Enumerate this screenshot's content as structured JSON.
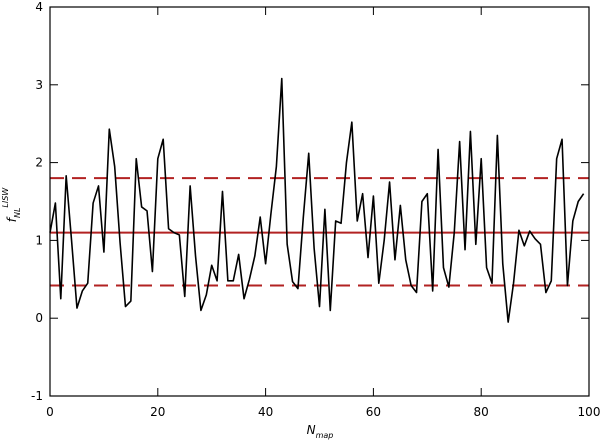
{
  "chart_data": {
    "type": "line",
    "xlabel": {
      "base": "N",
      "sub": "map"
    },
    "ylabel": {
      "base": "f",
      "sub": "NL",
      "sup": "LISW"
    },
    "x": [
      0,
      1,
      2,
      3,
      4,
      5,
      6,
      7,
      8,
      9,
      10,
      11,
      12,
      13,
      14,
      15,
      16,
      17,
      18,
      19,
      20,
      21,
      22,
      23,
      24,
      25,
      26,
      27,
      28,
      29,
      30,
      31,
      32,
      33,
      34,
      35,
      36,
      37,
      38,
      39,
      40,
      41,
      42,
      43,
      44,
      45,
      46,
      47,
      48,
      49,
      50,
      51,
      52,
      53,
      54,
      55,
      56,
      57,
      58,
      59,
      60,
      61,
      62,
      63,
      64,
      65,
      66,
      67,
      68,
      69,
      70,
      71,
      72,
      73,
      74,
      75,
      76,
      77,
      78,
      79,
      80,
      81,
      82,
      83,
      84,
      85,
      86,
      87,
      88,
      89,
      90,
      91,
      92,
      93,
      94,
      95,
      96,
      97,
      98,
      99
    ],
    "series": [
      {
        "color": "#000000",
        "values": [
          1.1,
          1.48,
          0.25,
          1.83,
          1.0,
          0.13,
          0.35,
          0.45,
          1.48,
          1.7,
          0.85,
          2.43,
          1.95,
          0.97,
          0.15,
          0.22,
          2.05,
          1.43,
          1.38,
          0.6,
          2.05,
          2.3,
          1.15,
          1.1,
          1.07,
          0.28,
          1.7,
          0.8,
          0.1,
          0.3,
          0.68,
          0.48,
          1.63,
          0.48,
          0.48,
          0.82,
          0.25,
          0.5,
          0.8,
          1.3,
          0.7,
          1.35,
          1.95,
          3.08,
          0.95,
          0.47,
          0.38,
          1.3,
          2.12,
          0.9,
          0.15,
          1.4,
          0.1,
          1.25,
          1.22,
          2.0,
          2.52,
          1.25,
          1.6,
          0.78,
          1.57,
          0.45,
          1.0,
          1.75,
          0.75,
          1.45,
          0.75,
          0.42,
          0.33,
          1.5,
          1.6,
          0.35,
          2.17,
          0.65,
          0.4,
          1.1,
          2.27,
          0.88,
          2.4,
          0.95,
          2.05,
          0.65,
          0.45,
          2.35,
          0.7,
          -0.05,
          0.45,
          1.13,
          0.93,
          1.12,
          1.02,
          0.95,
          0.33,
          0.48,
          2.05,
          2.3,
          0.42,
          1.25,
          1.5,
          1.6
        ]
      }
    ],
    "hlines": [
      {
        "value": 1.1,
        "color": "#b22222",
        "style": "solid"
      },
      {
        "value": 1.8,
        "color": "#b22222",
        "style": "dashed"
      },
      {
        "value": 0.42,
        "color": "#b22222",
        "style": "dashed"
      }
    ],
    "xlim": [
      0,
      100
    ],
    "xticks": [
      0,
      20,
      40,
      60,
      80,
      100
    ],
    "ylim": [
      -1,
      4
    ],
    "yticks": [
      -1,
      0,
      1,
      2,
      3,
      4
    ]
  }
}
